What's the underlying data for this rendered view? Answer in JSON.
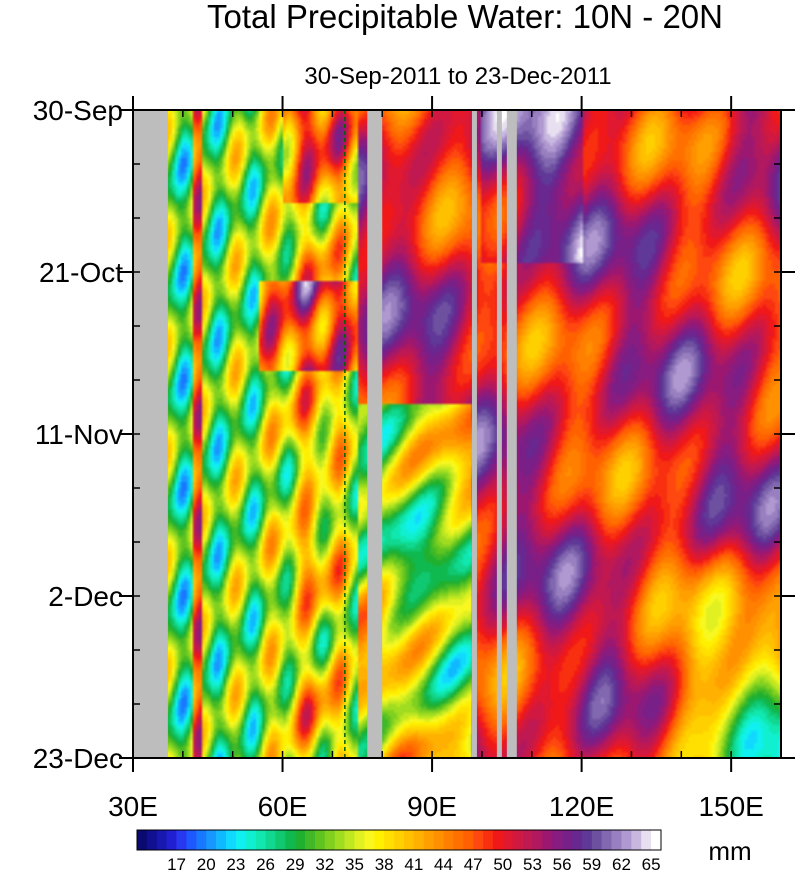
{
  "chart_data": {
    "type": "heatmap",
    "title": "Total Precipitable Water: 10N - 20N",
    "subtitle": "30-Sep-2011 to 23-Dec-2011",
    "x_axis": {
      "range": [
        30,
        160
      ],
      "ticks": [
        {
          "value": 30,
          "label": "30E"
        },
        {
          "value": 60,
          "label": "60E"
        },
        {
          "value": 90,
          "label": "90E"
        },
        {
          "value": 120,
          "label": "120E"
        },
        {
          "value": 150,
          "label": "150E"
        }
      ],
      "minor_step": 10
    },
    "y_axis": {
      "range_days": [
        0,
        84
      ],
      "reversed": true,
      "ticks": [
        {
          "value": 0,
          "label": "30-Sep"
        },
        {
          "value": 21,
          "label": "21-Oct"
        },
        {
          "value": 42,
          "label": "11-Nov"
        },
        {
          "value": 63,
          "label": "2-Dec"
        },
        {
          "value": 84,
          "label": "23-Dec"
        }
      ],
      "minor_step": 7
    },
    "colorbar": {
      "levels": [
        14,
        15,
        16,
        17,
        18,
        19,
        20,
        21,
        22,
        23,
        24,
        25,
        26,
        27,
        28,
        29,
        30,
        31,
        32,
        33,
        34,
        35,
        36,
        37,
        38,
        39,
        40,
        41,
        42,
        43,
        44,
        45,
        46,
        47,
        48,
        49,
        50,
        51,
        52,
        53,
        54,
        55,
        56,
        57,
        58,
        59,
        60,
        61,
        62,
        63,
        64,
        65
      ],
      "labels": [
        "17",
        "20",
        "23",
        "26",
        "29",
        "32",
        "35",
        "38",
        "41",
        "44",
        "47",
        "50",
        "53",
        "56",
        "59",
        "62",
        "65"
      ],
      "units": "mm",
      "colors": [
        "#0a0a70",
        "#101090",
        "#1818b0",
        "#2020d0",
        "#2838f0",
        "#2058ff",
        "#1878ff",
        "#1898ff",
        "#10b8ff",
        "#10d8ff",
        "#10f0f0",
        "#10f0d0",
        "#10e8b0",
        "#10d890",
        "#10c870",
        "#10b850",
        "#20b030",
        "#40b828",
        "#60c420",
        "#80d020",
        "#a0dc20",
        "#c0e820",
        "#e0f020",
        "#f8f820",
        "#fff000",
        "#ffe000",
        "#ffd000",
        "#ffc000",
        "#ffb000",
        "#ffa000",
        "#ff9000",
        "#ff8000",
        "#ff7000",
        "#ff6000",
        "#ff4810",
        "#f83010",
        "#f01818",
        "#e01830",
        "#d01840",
        "#c01850",
        "#b01860",
        "#9c1870",
        "#881c80",
        "#782088",
        "#682890",
        "#603898",
        "#6e50a0",
        "#8268b0",
        "#9880c0",
        "#b098d0",
        "#c8b8e0",
        "#e8e0f0",
        "#ffffff"
      ]
    },
    "missing_bands_lon": [
      [
        30,
        37
      ],
      [
        77,
        80
      ],
      [
        98,
        99
      ],
      [
        103,
        104
      ],
      [
        105,
        107
      ]
    ],
    "dashed_line_lon": 72.5,
    "field_description": "Hovmoller of TPW averaged 10N-20N; low values (17-35 mm) over 37E-75E with Arabian Sea moisture bursts; high values (50-60 mm) east of 80E with eastward/westward propagating bands; drying east of 120E after late November"
  }
}
